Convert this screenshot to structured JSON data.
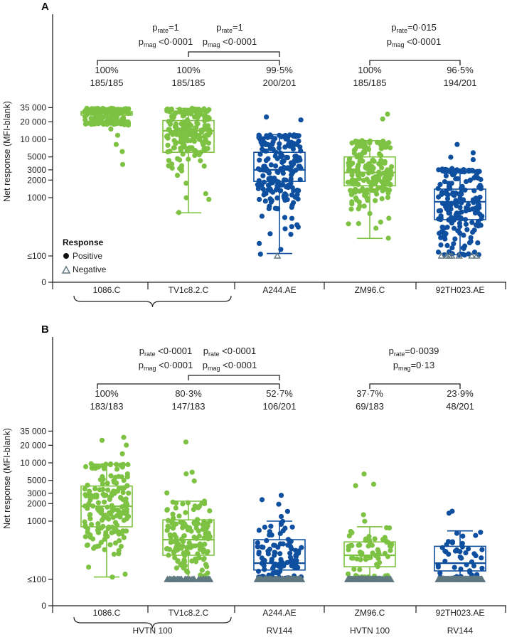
{
  "colors": {
    "green": "#7dc242",
    "blue": "#0e4f9f",
    "grey": "#607880",
    "axis": "#222222"
  },
  "chart_data": [
    {
      "type": "box-scatter",
      "panel": "A",
      "ylabel": "Net response (MFI-blank)",
      "y_ticks": [
        "35 000",
        "20 000",
        "10 000",
        "5000",
        "3000",
        "2000",
        "1000",
        "≤100",
        "0"
      ],
      "categories": [
        "1086.C",
        "TV1c8.2.C",
        "A244.AE",
        "ZM96.C",
        "92TH023.AE"
      ],
      "x_group_labels": [],
      "percentages": [
        "100%",
        "100%",
        "99·5%",
        "100%",
        "96·5%"
      ],
      "fractions": [
        "185/185",
        "185/185",
        "200/201",
        "185/185",
        "194/201"
      ],
      "comparisons": [
        {
          "rate": "=1",
          "mag": " <0·0001",
          "from": "1086.C",
          "to": "A244.AE"
        },
        {
          "rate": "=1",
          "mag": " <0·0001",
          "from": "TV1c8.2.C",
          "to": "A244.AE"
        },
        {
          "rate": "=0·015",
          "mag": " <0·0001",
          "from": "ZM96.C",
          "to": "92TH023.AE"
        }
      ],
      "boxes": [
        {
          "name": "1086.C",
          "color": "green",
          "n": 185,
          "min": 18000,
          "q1": 26000,
          "median": 28000,
          "q3": 30000,
          "max": 34000,
          "spread": 0.6,
          "extra": [
            3800,
            6000,
            8000,
            12000,
            15000
          ]
        },
        {
          "name": "TV1c8.2.C",
          "color": "green",
          "n": 185,
          "min": 550,
          "q1": 6000,
          "median": 14000,
          "q3": 21000,
          "max": 34000,
          "spread": 0.8,
          "extra": [
            550,
            950,
            1200
          ]
        },
        {
          "name": "A244.AE",
          "color": "blue",
          "n": 200,
          "min": 110,
          "q1": 1900,
          "median": 3000,
          "q3": 6000,
          "max": 12000,
          "spread": 1.2,
          "extra": [
            110,
            130,
            160,
            230,
            320,
            22000,
            24000
          ]
        },
        {
          "name": "ZM96.C",
          "color": "green",
          "n": 185,
          "min": 200,
          "q1": 1600,
          "median": 2700,
          "q3": 5000,
          "max": 9500,
          "spread": 1.0,
          "extra": [
            200,
            300,
            360,
            27000,
            22000
          ]
        },
        {
          "name": "92TH023.AE",
          "color": "blue",
          "n": 194,
          "min": 105,
          "q1": 420,
          "median": 850,
          "q3": 1400,
          "max": 3100,
          "spread": 1.2,
          "extra": [
            105,
            110,
            8000,
            6000,
            5000,
            4500
          ]
        }
      ],
      "negatives": [
        {
          "category": "A244.AE",
          "count": 1
        },
        {
          "category": "92TH023.AE",
          "count": 7
        }
      ],
      "legend": {
        "title": "Response",
        "positive": "Positive",
        "negative": "Negative"
      }
    },
    {
      "type": "box-scatter",
      "panel": "B",
      "ylabel": "Net response (MFI-blank)",
      "y_ticks": [
        "35 000",
        "20 000",
        "10 000",
        "5000",
        "3000",
        "2000",
        "1000",
        "≤100",
        "0"
      ],
      "categories": [
        "1086.C",
        "TV1c8.2.C",
        "A244.AE",
        "ZM96.C",
        "92TH023.AE"
      ],
      "x_group_labels": [
        "HVTN 100",
        "RV144",
        "HVTN 100",
        "RV144"
      ],
      "percentages": [
        "100%",
        "80·3%",
        "52·7%",
        "37·7%",
        "23·9%"
      ],
      "fractions": [
        "183/183",
        "147/183",
        "106/201",
        "69/183",
        "48/201"
      ],
      "comparisons": [
        {
          "rate": " <0·0001",
          "mag": " <0·0001",
          "from": "1086.C",
          "to": "A244.AE"
        },
        {
          "rate": " <0·0001",
          "mag": " <0·0001",
          "from": "TV1c8.2.C",
          "to": "A244.AE"
        },
        {
          "rate": "=0·0039",
          "mag": "=0·13",
          "from": "ZM96.C",
          "to": "92TH023.AE"
        }
      ],
      "boxes": [
        {
          "name": "1086.C",
          "color": "green",
          "n": 183,
          "min": 110,
          "q1": 800,
          "median": 1800,
          "q3": 4000,
          "max": 9500,
          "spread": 1.1,
          "extra": [
            110,
            120,
            14000,
            20000,
            25000,
            28000
          ]
        },
        {
          "name": "TV1c8.2.C",
          "color": "green",
          "n": 147,
          "min": 100,
          "q1": 260,
          "median": 480,
          "q3": 1050,
          "max": 2200,
          "spread": 1.0,
          "extra": [
            3000,
            5000,
            6500,
            7000,
            23000
          ]
        },
        {
          "name": "A244.AE",
          "color": "blue",
          "n": 106,
          "min": 100,
          "q1": 145,
          "median": 190,
          "q3": 480,
          "max": 1000,
          "spread": 0.9,
          "extra": [
            1200,
            1500,
            2000,
            2400,
            2800
          ]
        },
        {
          "name": "ZM96.C",
          "color": "green",
          "n": 69,
          "min": 100,
          "q1": 165,
          "median": 260,
          "q3": 440,
          "max": 800,
          "spread": 0.8,
          "extra": [
            1000,
            1300,
            4000,
            4200,
            6500
          ]
        },
        {
          "name": "92TH023.AE",
          "color": "blue",
          "n": 48,
          "min": 100,
          "q1": 140,
          "median": 190,
          "q3": 370,
          "max": 680,
          "spread": 0.7,
          "extra": [
            1400,
            1500
          ]
        }
      ],
      "negatives": [
        {
          "category": "1086.C",
          "count": 0
        },
        {
          "category": "TV1c8.2.C",
          "count": 36
        },
        {
          "category": "A244.AE",
          "count": 95
        },
        {
          "category": "ZM96.C",
          "count": 114
        },
        {
          "category": "92TH023.AE",
          "count": 153
        }
      ],
      "legend": null
    }
  ]
}
